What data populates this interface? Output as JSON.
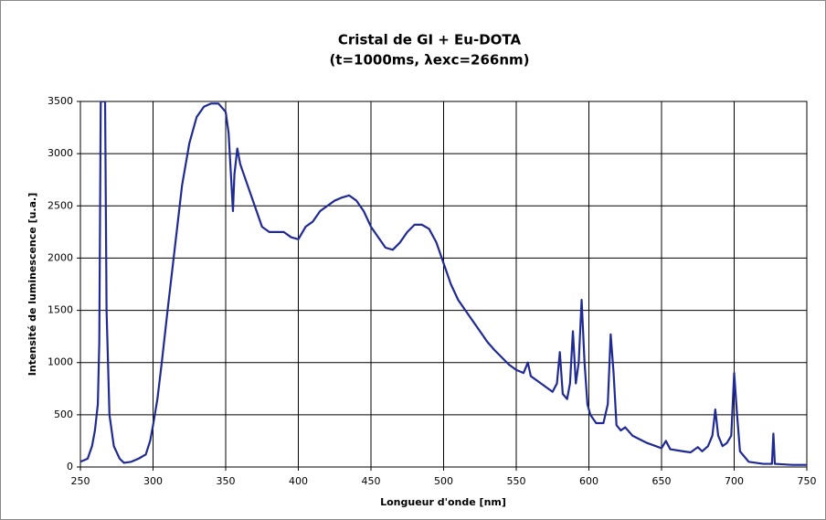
{
  "chart_data": {
    "type": "line",
    "title": [
      "Cristal de GI + Eu-DOTA",
      "(t=1000ms, λexc=266nm)"
    ],
    "x_label": "Longueur d'onde [nm]",
    "y_label": "Intensité de luminescence [u.a.]",
    "xlim": [
      250,
      750
    ],
    "xticks": [
      250,
      300,
      350,
      400,
      450,
      500,
      550,
      600,
      650,
      700,
      750
    ],
    "ylim": [
      0,
      3500
    ],
    "yticks": [
      0,
      500,
      1000,
      1500,
      2000,
      2500,
      3000,
      3500
    ],
    "grid": true,
    "series": [
      {
        "name": "Eu-DOTA",
        "color": "#1f2a94",
        "x": [
          250,
          255,
          258,
          260,
          262,
          263,
          264,
          265,
          267,
          268,
          270,
          273,
          277,
          280,
          285,
          290,
          295,
          298,
          300,
          303,
          306,
          310,
          315,
          320,
          325,
          330,
          335,
          340,
          345,
          350,
          352,
          354,
          355,
          356,
          358,
          360,
          365,
          370,
          375,
          380,
          385,
          390,
          395,
          400,
          405,
          410,
          415,
          420,
          425,
          430,
          435,
          440,
          445,
          450,
          455,
          460,
          465,
          470,
          475,
          480,
          485,
          490,
          495,
          500,
          505,
          510,
          515,
          520,
          525,
          530,
          535,
          540,
          545,
          550,
          555,
          558,
          560,
          565,
          570,
          575,
          578,
          580,
          582,
          585,
          587,
          589,
          591,
          593,
          595,
          597,
          599,
          601,
          605,
          610,
          613,
          615,
          617,
          619,
          622,
          625,
          630,
          640,
          650,
          653,
          656,
          665,
          670,
          675,
          678,
          682,
          685,
          687,
          689,
          692,
          695,
          698,
          700,
          702,
          704,
          710,
          720,
          726,
          727,
          728,
          740,
          750
        ],
        "values": [
          50,
          80,
          200,
          350,
          600,
          1200,
          3500,
          3500,
          3500,
          1500,
          500,
          200,
          80,
          40,
          50,
          80,
          120,
          250,
          400,
          650,
          1000,
          1500,
          2100,
          2700,
          3100,
          3350,
          3450,
          3480,
          3480,
          3400,
          3200,
          2700,
          2450,
          2800,
          3050,
          2900,
          2700,
          2500,
          2300,
          2250,
          2250,
          2250,
          2200,
          2180,
          2300,
          2350,
          2450,
          2500,
          2550,
          2580,
          2600,
          2550,
          2450,
          2300,
          2200,
          2100,
          2080,
          2150,
          2250,
          2320,
          2320,
          2280,
          2150,
          1950,
          1750,
          1600,
          1500,
          1400,
          1300,
          1200,
          1120,
          1050,
          980,
          930,
          900,
          1000,
          870,
          820,
          770,
          720,
          800,
          1100,
          700,
          650,
          800,
          1300,
          800,
          1000,
          1600,
          1000,
          600,
          500,
          420,
          420,
          600,
          1270,
          900,
          400,
          350,
          380,
          300,
          230,
          180,
          250,
          170,
          150,
          140,
          190,
          150,
          200,
          300,
          550,
          300,
          200,
          230,
          300,
          900,
          500,
          150,
          50,
          30,
          30,
          320,
          30,
          20,
          20
        ]
      }
    ]
  }
}
